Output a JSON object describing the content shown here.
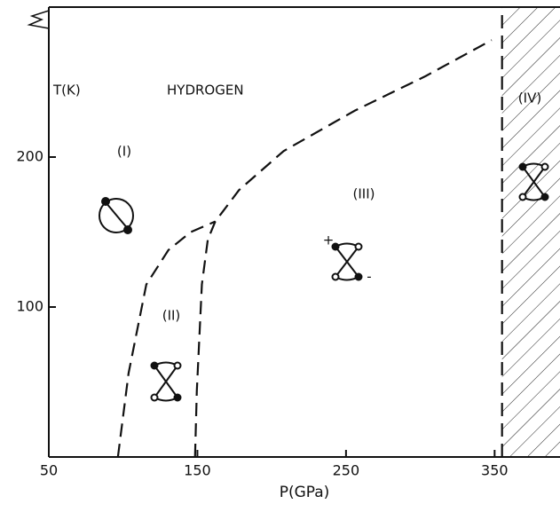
{
  "chart_data": {
    "type": "line",
    "title": "HYDROGEN",
    "xlabel": "P(GPa)",
    "ylabel": "T(K)",
    "xlim": [
      50,
      394
    ],
    "ylim": [
      0,
      300
    ],
    "xticks": [
      50,
      150,
      250,
      350
    ],
    "yticks": [
      100,
      200
    ],
    "series": [
      {
        "color": "#111111",
        "x": [
          96.5,
          103.7,
          115.6,
          130.5,
          145.5,
          162
        ],
        "values": [
          0,
          56,
          115,
          138,
          150,
          157
        ]
      },
      {
        "color": "#111111",
        "x": [
          148.4,
          149.6,
          153,
          157,
          162,
          178,
          208,
          256,
          303.6,
          348
        ],
        "values": [
          0,
          44,
          115,
          145,
          157,
          178,
          204,
          231,
          254,
          278
        ]
      },
      {
        "color": "#111111",
        "x": [
          355,
          355
        ],
        "values": [
          0,
          300
        ]
      }
    ],
    "hatched_region": [
      355,
      394
    ],
    "annotations": [
      "(I)",
      "(II)",
      "(III)",
      "(IV)",
      "+",
      "-"
    ]
  }
}
